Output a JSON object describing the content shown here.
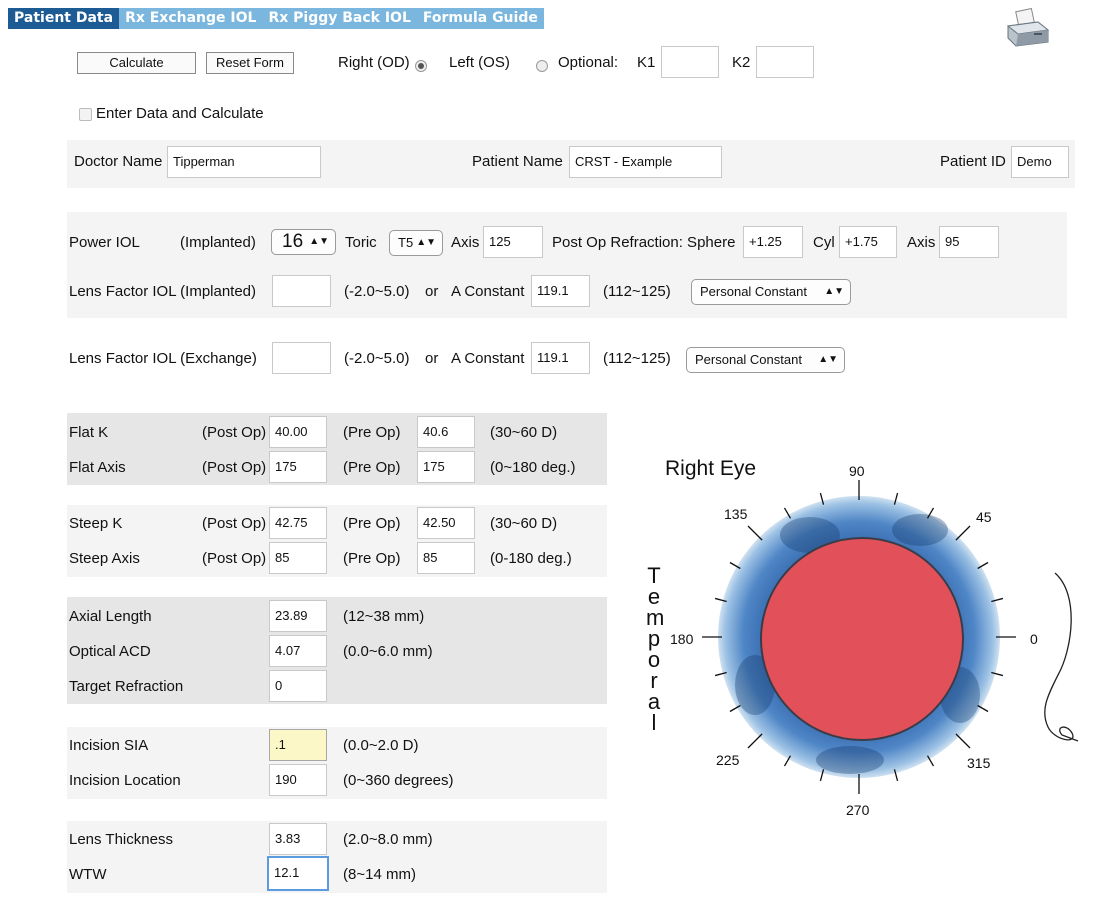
{
  "tabs": [
    "Patient Data",
    "Rx Exchange IOL",
    "Rx Piggy Back IOL",
    "Formula Guide"
  ],
  "toolbar": {
    "calculate": "Calculate",
    "reset": "Reset Form",
    "right_eye": "Right (OD)",
    "left_eye": "Left (OS)",
    "optional": "Optional:",
    "k1": "K1",
    "k2": "K2",
    "k1_value": "",
    "k2_value": "",
    "selected_eye": "Right (OD)"
  },
  "auto": {
    "label": "Enter Data and Calculate"
  },
  "patient": {
    "doctor_label": "Doctor Name",
    "doctor_value": "Tipperman",
    "patient_label": "Patient Name",
    "patient_value": "CRST - Example",
    "id_label": "Patient ID",
    "id_value": "Demo"
  },
  "iol": {
    "power_label": "Power IOL",
    "implanted": "(Implanted)",
    "power_value": "16",
    "toric_label": "Toric",
    "toric_value": "T5",
    "axis_label": "Axis",
    "axis_value": "125",
    "refraction_label": "Post Op Refraction: Sphere",
    "sphere_value": "+1.25",
    "cyl_label": "Cyl",
    "cyl_value": "+1.75",
    "axis2_label": "Axis",
    "axis2_value": "95"
  },
  "lens_implanted": {
    "label": "Lens Factor IOL (Implanted)",
    "value": "",
    "range": "(-2.0~5.0)",
    "or": "or",
    "aconst_label": "A Constant",
    "aconst_value": "119.1",
    "aconst_range": "(112~125)",
    "select": "Personal Constant"
  },
  "lens_exchange": {
    "label": "Lens Factor IOL (Exchange)",
    "value": "",
    "range": "(-2.0~5.0)",
    "or": "or",
    "aconst_label": "A Constant",
    "aconst_value": "119.1",
    "aconst_range": "(112~125)",
    "select": "Personal Constant"
  },
  "flat": {
    "k_label": "Flat K",
    "axis_label": "Flat Axis",
    "post": "(Post Op)",
    "pre": "(Pre Op)",
    "k_post": "40.00",
    "k_pre": "40.6",
    "k_range": "(30~60 D)",
    "axis_post": "175",
    "axis_pre": "175",
    "axis_range": "(0~180 deg.)"
  },
  "steep": {
    "k_label": "Steep K",
    "axis_label": "Steep Axis",
    "post": "(Post Op)",
    "pre": "(Pre Op)",
    "k_post": "42.75",
    "k_pre": "42.50",
    "k_range": "(30~60 D)",
    "axis_post": "85",
    "axis_pre": "85",
    "axis_range": "(0-180 deg.)"
  },
  "bio": {
    "axial_label": "Axial Length",
    "axial_value": "23.89",
    "axial_range": "(12~38 mm)",
    "acd_label": "Optical ACD",
    "acd_value": "4.07",
    "acd_range": "(0.0~6.0 mm)",
    "target_label": "Target Refraction",
    "target_value": "0"
  },
  "incision": {
    "sia_label": "Incision SIA",
    "sia_value": ".1",
    "sia_range": "(0.0~2.0 D)",
    "loc_label": "Incision Location",
    "loc_value": "190",
    "loc_range": "(0~360 degrees)"
  },
  "lens": {
    "thick_label": "Lens Thickness",
    "thick_value": "3.83",
    "thick_range": "(2.0~8.0 mm)",
    "wtw_label": "WTW",
    "wtw_value": "12.1",
    "wtw_range": "(8~14 mm)"
  },
  "eye": {
    "title": "Right Eye",
    "side_letters": [
      "T",
      "e",
      "m",
      "p",
      "o",
      "r",
      "a",
      "l"
    ],
    "angle_labels": [
      "0",
      "45",
      "90",
      "135",
      "180",
      "225",
      "270",
      "315"
    ],
    "pupil_color": "#e2505a"
  },
  "icons": {
    "printer": "printer-icon"
  }
}
